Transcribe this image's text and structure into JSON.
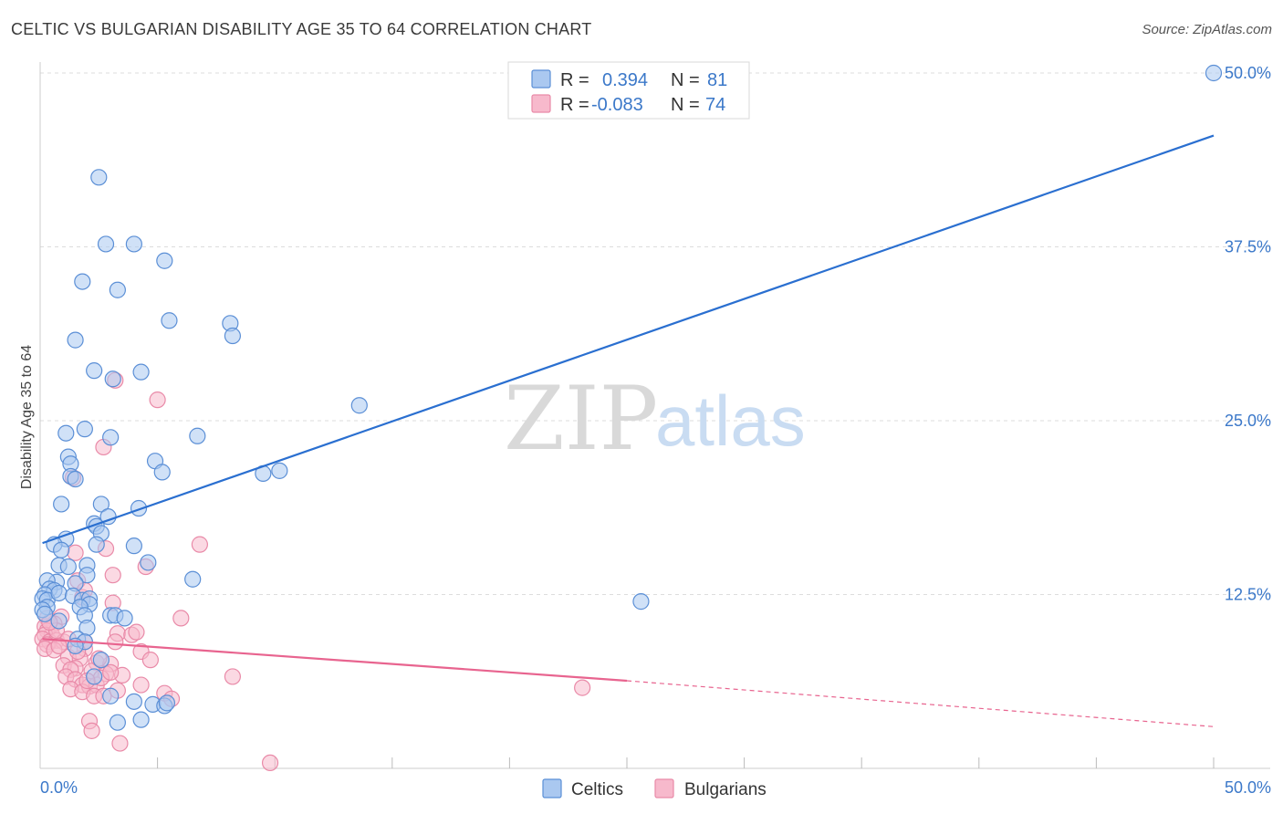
{
  "header": {
    "title": "CELTIC VS BULGARIAN DISABILITY AGE 35 TO 64 CORRELATION CHART",
    "source": "Source: ZipAtlas.com"
  },
  "watermark": {
    "zip": "ZIP",
    "atlas": "atlas"
  },
  "legend": {
    "r_label": "R =",
    "n_label": "N =",
    "series": [
      {
        "r": "0.394",
        "n": "81"
      },
      {
        "r": "-0.083",
        "n": "74"
      }
    ]
  },
  "bottom_legend": {
    "celtics": "Celtics",
    "bulgarians": "Bulgarians"
  },
  "colors": {
    "celtics_fill": "#aac8f0",
    "celtics_stroke": "#5b8fd6",
    "celtics_line": "#2a6fd0",
    "bulgarians_fill": "#f7b9cc",
    "bulgarians_stroke": "#e98aa8",
    "bulgarians_line": "#e8648f",
    "grid": "#dddddd",
    "tick": "#3b78c9"
  },
  "chart_data": {
    "type": "scatter",
    "title": "CELTIC VS BULGARIAN DISABILITY AGE 35 TO 64 CORRELATION CHART",
    "xlabel": "",
    "ylabel": "Disability Age 35 to 64",
    "xlim": [
      0,
      50
    ],
    "ylim": [
      0,
      50
    ],
    "x_tick_labels": [
      "0.0%",
      "50.0%"
    ],
    "y_tick_labels": [
      "12.5%",
      "25.0%",
      "37.5%",
      "50.0%"
    ],
    "y_ticks": [
      12.5,
      25.0,
      37.5,
      50.0
    ],
    "series": [
      {
        "name": "Celtics",
        "r": 0.394,
        "n": 81,
        "trend": {
          "x": [
            0.1,
            50
          ],
          "y": [
            16.2,
            45.5
          ]
        },
        "points": [
          [
            2.5,
            42.5
          ],
          [
            2.8,
            37.7
          ],
          [
            4.0,
            37.7
          ],
          [
            5.3,
            36.5
          ],
          [
            1.8,
            35.0
          ],
          [
            3.3,
            34.4
          ],
          [
            5.5,
            32.2
          ],
          [
            8.1,
            32.0
          ],
          [
            8.2,
            31.1
          ],
          [
            1.5,
            30.8
          ],
          [
            2.3,
            28.6
          ],
          [
            4.3,
            28.5
          ],
          [
            3.1,
            28.0
          ],
          [
            13.6,
            26.1
          ],
          [
            1.9,
            24.4
          ],
          [
            1.1,
            24.1
          ],
          [
            3.0,
            23.8
          ],
          [
            6.7,
            23.9
          ],
          [
            1.2,
            22.4
          ],
          [
            4.9,
            22.1
          ],
          [
            1.3,
            21.9
          ],
          [
            5.2,
            21.3
          ],
          [
            1.3,
            21.0
          ],
          [
            1.5,
            20.8
          ],
          [
            9.5,
            21.2
          ],
          [
            10.2,
            21.4
          ],
          [
            0.9,
            19.0
          ],
          [
            2.6,
            19.0
          ],
          [
            4.2,
            18.7
          ],
          [
            2.9,
            18.1
          ],
          [
            2.3,
            17.6
          ],
          [
            2.4,
            17.4
          ],
          [
            2.6,
            16.9
          ],
          [
            1.1,
            16.5
          ],
          [
            2.4,
            16.1
          ],
          [
            0.6,
            16.1
          ],
          [
            4.0,
            16.0
          ],
          [
            0.9,
            15.7
          ],
          [
            0.8,
            14.6
          ],
          [
            1.2,
            14.5
          ],
          [
            4.6,
            14.8
          ],
          [
            2.0,
            14.6
          ],
          [
            2.0,
            13.9
          ],
          [
            6.5,
            13.6
          ],
          [
            1.5,
            13.3
          ],
          [
            0.7,
            13.4
          ],
          [
            0.3,
            13.5
          ],
          [
            0.4,
            12.9
          ],
          [
            0.6,
            12.8
          ],
          [
            0.2,
            12.5
          ],
          [
            0.1,
            12.2
          ],
          [
            0.3,
            12.1
          ],
          [
            0.8,
            12.6
          ],
          [
            1.4,
            12.4
          ],
          [
            1.8,
            12.1
          ],
          [
            2.1,
            12.2
          ],
          [
            2.1,
            11.8
          ],
          [
            1.7,
            11.6
          ],
          [
            0.3,
            11.6
          ],
          [
            0.1,
            11.4
          ],
          [
            0.2,
            11.1
          ],
          [
            1.9,
            11.0
          ],
          [
            3.0,
            11.0
          ],
          [
            3.2,
            11.0
          ],
          [
            3.6,
            10.8
          ],
          [
            0.8,
            10.6
          ],
          [
            2.0,
            10.1
          ],
          [
            25.6,
            12.0
          ],
          [
            1.6,
            9.3
          ],
          [
            1.9,
            9.1
          ],
          [
            1.5,
            8.8
          ],
          [
            2.6,
            7.8
          ],
          [
            2.3,
            6.6
          ],
          [
            3.0,
            5.2
          ],
          [
            4.0,
            4.8
          ],
          [
            4.8,
            4.6
          ],
          [
            5.3,
            4.5
          ],
          [
            5.4,
            4.7
          ],
          [
            3.3,
            3.3
          ],
          [
            4.3,
            3.5
          ],
          [
            50.0,
            50.0
          ]
        ]
      },
      {
        "name": "Bulgarians",
        "r": -0.083,
        "n": 74,
        "trend": {
          "x": [
            0.1,
            25.0
          ],
          "y": [
            9.3,
            6.3
          ]
        },
        "trend_dashed": {
          "x": [
            25.0,
            50
          ],
          "y": [
            6.3,
            3.0
          ]
        },
        "points": [
          [
            3.2,
            27.9
          ],
          [
            5.0,
            26.5
          ],
          [
            2.7,
            23.1
          ],
          [
            1.4,
            20.9
          ],
          [
            6.8,
            16.1
          ],
          [
            2.8,
            15.8
          ],
          [
            1.5,
            15.5
          ],
          [
            4.5,
            14.5
          ],
          [
            3.1,
            13.9
          ],
          [
            1.6,
            13.5
          ],
          [
            1.8,
            12.3
          ],
          [
            3.1,
            11.9
          ],
          [
            6.0,
            10.8
          ],
          [
            0.9,
            10.9
          ],
          [
            0.3,
            10.8
          ],
          [
            0.6,
            10.4
          ],
          [
            0.2,
            10.2
          ],
          [
            0.3,
            9.9
          ],
          [
            0.5,
            9.6
          ],
          [
            0.2,
            9.6
          ],
          [
            3.3,
            9.7
          ],
          [
            3.9,
            9.6
          ],
          [
            0.1,
            9.3
          ],
          [
            0.4,
            9.1
          ],
          [
            0.7,
            9.2
          ],
          [
            1.0,
            9.1
          ],
          [
            1.9,
            9.1
          ],
          [
            0.3,
            8.9
          ],
          [
            0.2,
            8.6
          ],
          [
            0.6,
            8.5
          ],
          [
            1.9,
            8.6
          ],
          [
            3.2,
            9.1
          ],
          [
            4.3,
            8.4
          ],
          [
            1.2,
            8.0
          ],
          [
            1.7,
            7.9
          ],
          [
            2.4,
            7.6
          ],
          [
            3.0,
            7.5
          ],
          [
            4.7,
            7.8
          ],
          [
            1.0,
            7.4
          ],
          [
            1.5,
            7.2
          ],
          [
            2.2,
            7.0
          ],
          [
            1.3,
            7.1
          ],
          [
            2.8,
            6.8
          ],
          [
            3.5,
            6.7
          ],
          [
            1.1,
            6.6
          ],
          [
            1.5,
            6.4
          ],
          [
            1.8,
            6.0
          ],
          [
            2.1,
            5.9
          ],
          [
            2.4,
            6.0
          ],
          [
            2.6,
            6.5
          ],
          [
            4.3,
            6.0
          ],
          [
            8.2,
            6.6
          ],
          [
            1.3,
            5.7
          ],
          [
            1.8,
            5.5
          ],
          [
            2.3,
            5.2
          ],
          [
            2.7,
            5.2
          ],
          [
            3.3,
            5.6
          ],
          [
            5.3,
            5.4
          ],
          [
            5.6,
            5.0
          ],
          [
            23.1,
            5.8
          ],
          [
            2.1,
            3.4
          ],
          [
            2.2,
            2.7
          ],
          [
            3.4,
            1.8
          ],
          [
            9.8,
            0.4
          ],
          [
            0.7,
            9.9
          ],
          [
            1.2,
            9.3
          ],
          [
            2.5,
            7.9
          ],
          [
            1.6,
            8.4
          ],
          [
            0.4,
            10.5
          ],
          [
            0.8,
            8.8
          ],
          [
            2.0,
            6.3
          ],
          [
            3.0,
            6.9
          ],
          [
            1.9,
            12.8
          ],
          [
            4.1,
            9.8
          ]
        ]
      }
    ]
  }
}
